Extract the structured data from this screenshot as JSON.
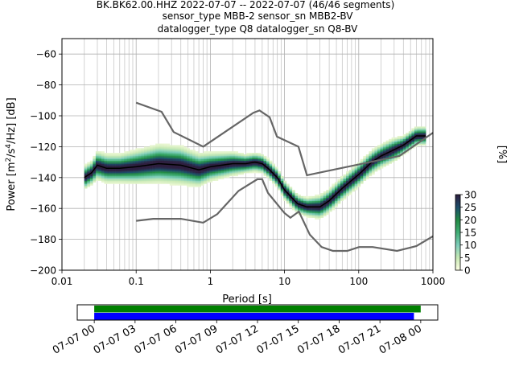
{
  "title": {
    "line1": "BK.BK62.00.HHZ   2022-07-07 -- 2022-07-07  (46/46 segments)",
    "line2": "sensor_type MBB-2 sensor_sn MBB2-BV",
    "line3": "datalogger_type Q8 datalogger_sn Q8-BV"
  },
  "chart_data": [
    {
      "type": "heatmap",
      "xlabel": "Period [s]",
      "ylabel": "Power [m²/s⁴/Hz] [dB]",
      "x_scale": "log",
      "xlim": [
        0.01,
        1000
      ],
      "ylim": [
        -200,
        -50
      ],
      "x_ticks": [
        {
          "v": 0.01,
          "label": "0.01"
        },
        {
          "v": 0.1,
          "label": "0.1"
        },
        {
          "v": 1,
          "label": "1"
        },
        {
          "v": 10,
          "label": "10"
        },
        {
          "v": 100,
          "label": "100"
        },
        {
          "v": 1000,
          "label": "1000"
        }
      ],
      "y_ticks": [
        {
          "v": -60,
          "label": "−60"
        },
        {
          "v": -80,
          "label": "−80"
        },
        {
          "v": -100,
          "label": "−100"
        },
        {
          "v": -120,
          "label": "−120"
        },
        {
          "v": -140,
          "label": "−140"
        },
        {
          "v": -160,
          "label": "−160"
        },
        {
          "v": -180,
          "label": "−180"
        },
        {
          "v": -200,
          "label": "−200"
        }
      ],
      "grid": true,
      "colorbar": {
        "label": "[%]",
        "range": [
          0,
          30
        ],
        "ticks": [
          {
            "v": 0,
            "label": "0"
          },
          {
            "v": 5,
            "label": "5"
          },
          {
            "v": 10,
            "label": "10"
          },
          {
            "v": 15,
            "label": "15"
          },
          {
            "v": 20,
            "label": "20"
          },
          {
            "v": 25,
            "label": "25"
          },
          {
            "v": 30,
            "label": "30"
          }
        ],
        "colors": [
          "#ffffe5",
          "#c7e9b4",
          "#7fcdbb",
          "#41ae76",
          "#238b45",
          "#1d4e6b",
          "#2d1e3e"
        ]
      },
      "mean_psd": {
        "period": [
          0.02,
          0.025,
          0.03,
          0.04,
          0.06,
          0.1,
          0.2,
          0.4,
          0.7,
          1,
          2,
          3,
          4,
          5,
          6,
          8,
          10,
          15,
          20,
          30,
          40,
          60,
          100,
          150,
          200,
          300,
          400,
          600,
          800
        ],
        "db": [
          -140,
          -137,
          -132,
          -134,
          -134,
          -133,
          -131,
          -132,
          -135,
          -133,
          -131,
          -131,
          -130,
          -131,
          -134,
          -140,
          -148,
          -157,
          -159,
          -159,
          -155,
          -147,
          -138,
          -130,
          -126,
          -122,
          -119,
          -113,
          -113
        ]
      },
      "noise_models": {
        "high": {
          "period": [
            0.1,
            0.22,
            0.32,
            0.8,
            3.8,
            4.6,
            6.3,
            7.9,
            15.4,
            20,
            354.8,
            1000
          ],
          "db": [
            -91.5,
            -97.4,
            -110.5,
            -120,
            -98,
            -96.5,
            -101,
            -113.5,
            -120,
            -138.5,
            -126,
            -111
          ]
        },
        "low": {
          "period": [
            0.1,
            0.17,
            0.4,
            0.8,
            1.24,
            2.4,
            4.3,
            5,
            6,
            10,
            12,
            15.6,
            21.9,
            31.6,
            45,
            70,
            101,
            154,
            328,
            600,
            1000
          ],
          "db": [
            -168,
            -166.7,
            -166.7,
            -169.2,
            -163.7,
            -148.6,
            -141.1,
            -141.1,
            -150,
            -163,
            -166,
            -162,
            -177,
            -185,
            -187.5,
            -187.5,
            -185,
            -185,
            -187.5,
            -184.4,
            -178
          ]
        }
      },
      "spread_db": [
        4,
        4,
        5,
        5,
        5,
        6,
        7,
        7,
        6,
        5,
        4,
        3,
        3,
        3,
        3,
        3,
        3,
        3,
        3,
        4,
        4,
        4,
        4,
        4,
        4,
        4,
        3,
        3,
        3
      ]
    },
    {
      "type": "timeline",
      "x_ticks": [
        "07-07 00",
        "07-07 03",
        "07-07 06",
        "07-07 09",
        "07-07 12",
        "07-07 15",
        "07-07 18",
        "07-07 21",
        "07-08 00"
      ],
      "bars": [
        {
          "color": "#008000",
          "start_h": 0,
          "end_h": 24.0
        },
        {
          "color": "#0000ff",
          "start_h": 0,
          "end_h": 23.5
        }
      ],
      "range_h": [
        -1.25,
        25.25
      ]
    }
  ]
}
